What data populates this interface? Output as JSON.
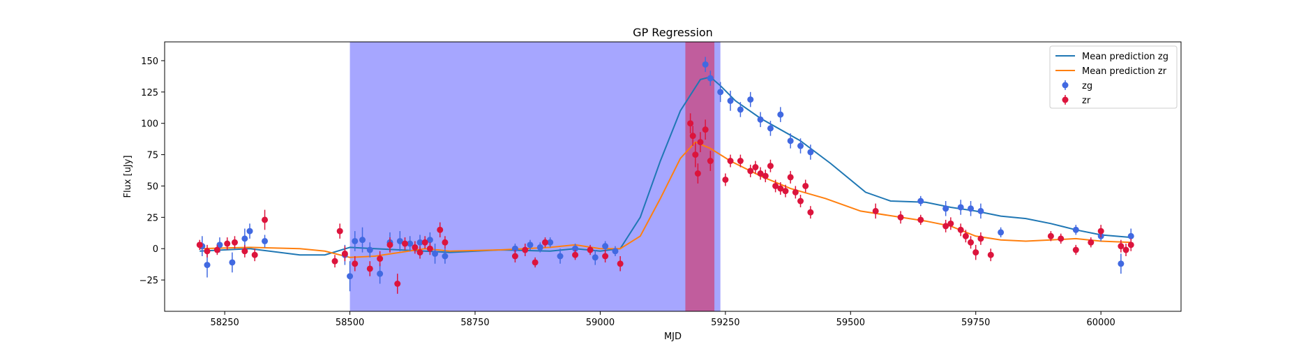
{
  "chart_data": {
    "type": "scatter",
    "title": "GP Regression",
    "xlabel": "MJD",
    "ylabel": "Flux [uJy]",
    "xlim": [
      58130,
      60160
    ],
    "ylim": [
      -50,
      165
    ],
    "xticks": [
      58250,
      58500,
      58750,
      59000,
      59250,
      59500,
      59750,
      60000
    ],
    "yticks": [
      -25,
      0,
      25,
      50,
      75,
      100,
      125,
      150
    ],
    "legend_position": "upper right",
    "shaded_regions": [
      {
        "x0": 58500,
        "x1": 59240,
        "color": "#0000ff",
        "opacity": 0.35
      },
      {
        "x0": 59170,
        "x1": 59228,
        "color": "#dc143c",
        "opacity": 0.5
      }
    ],
    "series": [
      {
        "name": "Mean prediction zg",
        "kind": "line",
        "color": "#1f77b4",
        "x": [
          58200,
          58300,
          58400,
          58450,
          58500,
          58550,
          58600,
          58700,
          58800,
          58900,
          58950,
          59000,
          59040,
          59080,
          59120,
          59160,
          59200,
          59220,
          59240,
          59270,
          59320,
          59400,
          59460,
          59530,
          59580,
          59650,
          59700,
          59750,
          59800,
          59850,
          59900,
          59950,
          60000,
          60060
        ],
        "y": [
          -2,
          0,
          -5,
          -5,
          1,
          0,
          -1,
          -3,
          -1,
          -2,
          0,
          -2,
          0,
          25,
          70,
          110,
          135,
          137,
          130,
          118,
          104,
          86,
          68,
          45,
          38,
          37,
          33,
          30,
          26,
          24,
          20,
          15,
          11,
          9
        ]
      },
      {
        "name": "Mean prediction zr",
        "kind": "line",
        "color": "#ff7f0e",
        "x": [
          58200,
          58300,
          58400,
          58450,
          58500,
          58550,
          58600,
          58650,
          58700,
          58800,
          58850,
          58900,
          58950,
          59000,
          59040,
          59080,
          59120,
          59160,
          59190,
          59220,
          59260,
          59320,
          59380,
          59450,
          59520,
          59600,
          59650,
          59700,
          59750,
          59800,
          59850,
          59900,
          59950,
          60000,
          60060
        ],
        "y": [
          0,
          1,
          0,
          -2,
          -7,
          -6,
          -3,
          0,
          -2,
          -1,
          0,
          1,
          3,
          0,
          0,
          10,
          40,
          72,
          85,
          80,
          70,
          58,
          48,
          40,
          30,
          25,
          22,
          18,
          10,
          7,
          6,
          7,
          8,
          6,
          5
        ]
      },
      {
        "name": "zg",
        "kind": "errorbar",
        "color": "#4169e1",
        "x": [
          58205,
          58215,
          58240,
          58265,
          58290,
          58300,
          58330,
          58490,
          58500,
          58510,
          58525,
          58540,
          58560,
          58580,
          58600,
          58620,
          58640,
          58660,
          58670,
          58690,
          58830,
          58860,
          58880,
          58900,
          58920,
          58950,
          58990,
          59010,
          59030,
          59210,
          59220,
          59240,
          59260,
          59280,
          59300,
          59320,
          59340,
          59360,
          59380,
          59400,
          59420,
          59640,
          59690,
          59720,
          59740,
          59760,
          59800,
          59950,
          60000,
          60040,
          60060
        ],
        "y": [
          2,
          -13,
          3,
          -11,
          8,
          14,
          6,
          -5,
          -22,
          6,
          7,
          -1,
          -20,
          5,
          6,
          4,
          5,
          7,
          -4,
          -6,
          0,
          3,
          1,
          5,
          -6,
          0,
          -7,
          2,
          -2,
          147,
          136,
          125,
          118,
          111,
          119,
          103,
          96,
          107,
          86,
          82,
          77,
          38,
          32,
          33,
          32,
          30,
          13,
          15,
          10,
          -12,
          10
        ],
        "err": [
          8,
          10,
          6,
          8,
          8,
          6,
          5,
          8,
          12,
          8,
          10,
          6,
          8,
          8,
          8,
          6,
          6,
          6,
          8,
          6,
          4,
          4,
          4,
          4,
          6,
          4,
          6,
          4,
          4,
          6,
          6,
          8,
          8,
          6,
          6,
          6,
          6,
          6,
          6,
          6,
          6,
          4,
          6,
          6,
          6,
          6,
          4,
          4,
          4,
          8,
          6
        ]
      },
      {
        "name": "zr",
        "kind": "errorbar",
        "color": "#dc143c",
        "x": [
          58200,
          58215,
          58235,
          58255,
          58270,
          58290,
          58310,
          58330,
          58470,
          58480,
          58490,
          58510,
          58540,
          58560,
          58580,
          58595,
          58610,
          58630,
          58640,
          58650,
          58660,
          58680,
          58690,
          58830,
          58850,
          58870,
          58890,
          58950,
          58980,
          59010,
          59040,
          59180,
          59185,
          59190,
          59195,
          59200,
          59210,
          59220,
          59250,
          59260,
          59280,
          59300,
          59310,
          59320,
          59330,
          59340,
          59350,
          59360,
          59370,
          59380,
          59390,
          59400,
          59410,
          59420,
          59550,
          59600,
          59640,
          59690,
          59700,
          59720,
          59730,
          59740,
          59750,
          59760,
          59780,
          59900,
          59920,
          59950,
          59980,
          60000,
          60040,
          60050,
          60060
        ],
        "y": [
          3,
          -2,
          -1,
          4,
          5,
          -2,
          -5,
          23,
          -10,
          14,
          -4,
          -12,
          -16,
          -8,
          3,
          -28,
          4,
          1,
          -3,
          5,
          0,
          15,
          5,
          -6,
          -1,
          -11,
          5,
          -5,
          -1,
          -6,
          -12,
          100,
          90,
          75,
          60,
          85,
          95,
          70,
          55,
          70,
          70,
          62,
          65,
          60,
          58,
          66,
          50,
          48,
          46,
          57,
          45,
          38,
          50,
          29,
          30,
          25,
          23,
          18,
          20,
          15,
          10,
          5,
          -3,
          8,
          -5,
          10,
          8,
          -1,
          5,
          14,
          2,
          -1,
          3
        ],
        "err": [
          4,
          5,
          4,
          5,
          5,
          5,
          5,
          8,
          5,
          6,
          6,
          6,
          6,
          6,
          6,
          8,
          5,
          5,
          5,
          5,
          5,
          6,
          5,
          5,
          5,
          4,
          4,
          4,
          4,
          5,
          6,
          8,
          8,
          10,
          8,
          8,
          8,
          8,
          5,
          5,
          5,
          5,
          5,
          5,
          5,
          5,
          5,
          5,
          5,
          5,
          5,
          5,
          5,
          5,
          6,
          5,
          4,
          5,
          5,
          5,
          5,
          5,
          6,
          5,
          5,
          4,
          4,
          4,
          4,
          5,
          5,
          5,
          5
        ]
      }
    ]
  }
}
